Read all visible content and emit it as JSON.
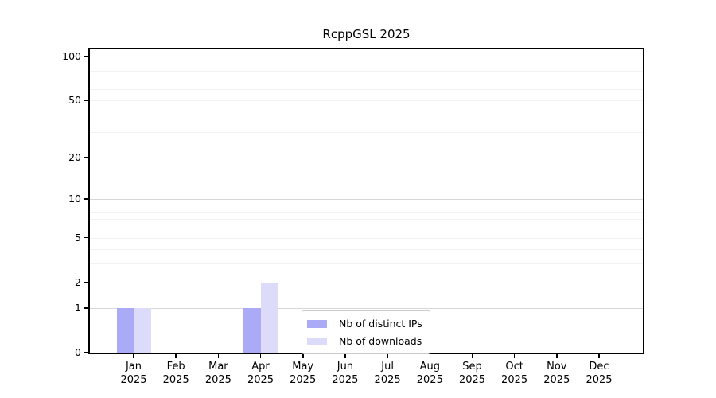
{
  "chart_data": {
    "type": "bar",
    "title": "RcppGSL 2025",
    "categories": [
      "Jan",
      "Feb",
      "Mar",
      "Apr",
      "May",
      "Jun",
      "Jul",
      "Aug",
      "Sep",
      "Oct",
      "Nov",
      "Dec"
    ],
    "year_label": "2025",
    "series": [
      {
        "name": "Nb of distinct IPs",
        "color": "#aaaaf7",
        "values": [
          1,
          0,
          0,
          1,
          0,
          0,
          0,
          0,
          0,
          0,
          0,
          0
        ]
      },
      {
        "name": "Nb of downloads",
        "color": "#dcdcfa",
        "values": [
          1,
          0,
          0,
          2,
          0,
          0,
          0,
          0,
          0,
          0,
          0,
          0
        ]
      }
    ],
    "yticks": [
      100,
      50,
      20,
      10,
      5,
      2,
      1,
      0
    ],
    "ylim": [
      0,
      112
    ],
    "scale": "log1p",
    "grid": true,
    "grid_minor_values": [
      2,
      3,
      4,
      5,
      6,
      7,
      8,
      9,
      20,
      30,
      40,
      50,
      60,
      70,
      80,
      90
    ],
    "grid_decade_values": [
      1,
      10,
      100
    ],
    "legend_position": "lower-center-inside",
    "xlabel": "",
    "ylabel": ""
  },
  "colors": {
    "bar_dark": "#aaaaf7",
    "bar_light": "#dcdcfa",
    "grid_minor": "#f2f2f2",
    "grid_decade": "#d6d6d6",
    "spine": "#000000",
    "legend_border": "#cccccc",
    "background": "#ffffff"
  }
}
